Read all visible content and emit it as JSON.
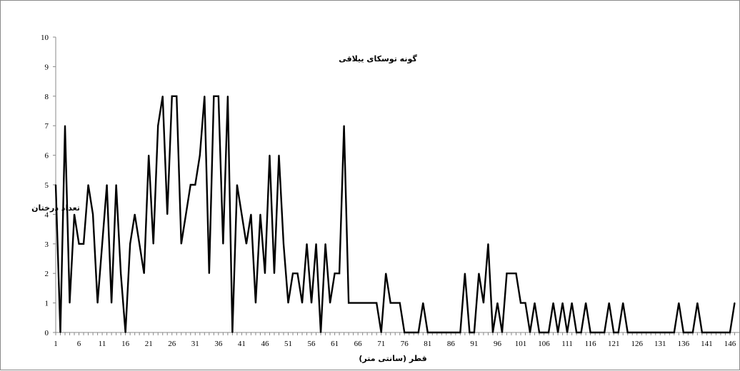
{
  "chart_data": {
    "type": "line",
    "title": "گونه توسکای ییلاقی",
    "xlabel": "قطر (سانتی متر)",
    "ylabel": "تعداد درختان",
    "ylim": [
      0,
      10
    ],
    "yticks": [
      "0",
      "1",
      "2",
      "3",
      "4",
      "5",
      "6",
      "7",
      "8",
      "9",
      "10"
    ],
    "xtick_labels": [
      "1",
      "6",
      "11",
      "16",
      "21",
      "26",
      "31",
      "36",
      "41",
      "46",
      "51",
      "56",
      "61",
      "66",
      "71",
      "76",
      "81",
      "86",
      "91",
      "96",
      "101",
      "106",
      "111",
      "116",
      "121",
      "126",
      "131",
      "136",
      "141",
      "146"
    ],
    "x": [
      1,
      2,
      3,
      4,
      5,
      6,
      7,
      8,
      9,
      10,
      11,
      12,
      13,
      14,
      15,
      16,
      17,
      18,
      19,
      20,
      21,
      22,
      23,
      24,
      25,
      26,
      27,
      28,
      29,
      30,
      31,
      32,
      33,
      34,
      35,
      36,
      37,
      38,
      39,
      40,
      41,
      42,
      43,
      44,
      45,
      46,
      47,
      48,
      49,
      50,
      51,
      52,
      53,
      54,
      55,
      56,
      57,
      58,
      59,
      60,
      61,
      62,
      63,
      64,
      65,
      66,
      67,
      68,
      69,
      70,
      71,
      72,
      73,
      74,
      75,
      76,
      77,
      78,
      79,
      80,
      81,
      82,
      83,
      84,
      85,
      86,
      87,
      88,
      89,
      90,
      91,
      92,
      93,
      94,
      95,
      96,
      97,
      98,
      99,
      100,
      101,
      102,
      103,
      104,
      105,
      106,
      107,
      108,
      109,
      110,
      111,
      112,
      113,
      114,
      115,
      116,
      117,
      118,
      119,
      120,
      121,
      122,
      123,
      124,
      125,
      126,
      127,
      128,
      129,
      130,
      131,
      132,
      133,
      134,
      135,
      136,
      137,
      138,
      139,
      140,
      141,
      142,
      143,
      144,
      145,
      146,
      147
    ],
    "series": [
      {
        "values": [
          5,
          0,
          7,
          1,
          4,
          3,
          3,
          5,
          4,
          1,
          3,
          5,
          1,
          5,
          2,
          0,
          3,
          4,
          3,
          2,
          6,
          3,
          7,
          8,
          4,
          8,
          8,
          3,
          4,
          5,
          5,
          6,
          8,
          2,
          8,
          8,
          3,
          8,
          0,
          5,
          4,
          3,
          4,
          1,
          4,
          2,
          6,
          2,
          6,
          3,
          1,
          2,
          2,
          1,
          3,
          1,
          3,
          0,
          3,
          1,
          2,
          2,
          7,
          1,
          1,
          1,
          1,
          1,
          1,
          1,
          0,
          2,
          1,
          1,
          1,
          0,
          0,
          0,
          0,
          1,
          0,
          0,
          0,
          0,
          0,
          0,
          0,
          0,
          2,
          0,
          0,
          2,
          1,
          3,
          0,
          1,
          0,
          2,
          2,
          2,
          1,
          1,
          0,
          1,
          0,
          0,
          0,
          1,
          0,
          1,
          0,
          1,
          0,
          0,
          1,
          0,
          0,
          0,
          0,
          1,
          0,
          0,
          1,
          0,
          0,
          0,
          0,
          0,
          0,
          0,
          0,
          0,
          0,
          0,
          1,
          0,
          0,
          0,
          1,
          0,
          0,
          0,
          0,
          0,
          0,
          0,
          1
        ],
        "color": "#000000"
      }
    ],
    "legend": "none",
    "grid": false
  }
}
